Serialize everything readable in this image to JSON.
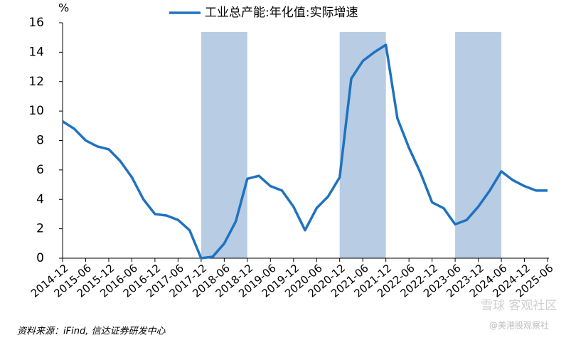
{
  "chart_data": {
    "type": "line",
    "y_unit": "%",
    "categories": [
      "2014-12",
      null,
      "2015-06",
      null,
      "2015-12",
      null,
      "2016-06",
      null,
      "2016-12",
      null,
      "2017-06",
      null,
      "2017-12",
      null,
      "2018-06",
      null,
      "2018-12",
      null,
      "2019-06",
      null,
      "2019-12",
      null,
      "2020-06",
      null,
      "2020-12",
      null,
      "2021-06",
      null,
      "2021-12",
      null,
      "2022-06",
      null,
      "2022-12",
      null,
      "2023-06",
      null,
      "2023-12",
      null,
      "2024-06",
      null,
      "2024-12",
      null,
      "2025-06"
    ],
    "series": [
      {
        "name": "工业总产能:年化值:实际增速",
        "color": "#1f72c0",
        "values": [
          9.3,
          8.8,
          8.0,
          7.6,
          7.4,
          6.6,
          5.5,
          4.0,
          3.0,
          2.9,
          2.6,
          1.9,
          0.0,
          0.1,
          1.0,
          2.5,
          5.4,
          5.6,
          4.9,
          4.6,
          3.5,
          1.9,
          3.4,
          4.2,
          5.5,
          12.2,
          13.4,
          14.0,
          14.5,
          9.5,
          7.5,
          5.8,
          3.8,
          3.4,
          2.3,
          2.6,
          3.5,
          4.6,
          5.9,
          5.3,
          4.9,
          4.6,
          4.6
        ]
      }
    ],
    "shaded_periods": [
      [
        "2017-12",
        "2018-12"
      ],
      [
        "2020-12",
        "2021-12"
      ],
      [
        "2023-06",
        "2024-06"
      ]
    ],
    "shade_color": "#b8cce4",
    "ylim": [
      0,
      16
    ],
    "yticks": [
      0,
      2,
      4,
      6,
      8,
      10,
      12,
      14,
      16
    ],
    "legend": "top",
    "source": "资料来源：iFind, 信达证券研发中心",
    "watermarks": [
      "雪球 客观社区",
      "@美港股观察社"
    ]
  }
}
